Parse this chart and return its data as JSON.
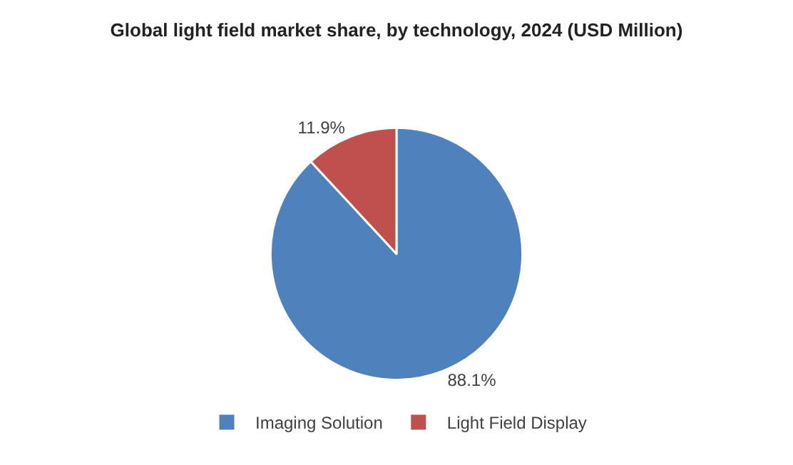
{
  "chart_data": {
    "type": "pie",
    "title": "Global light field market share, by technology, 2024 (USD Million)",
    "categories": [
      "Imaging Solution",
      "Light Field Display"
    ],
    "values": [
      88.1,
      11.9
    ],
    "colors": [
      "#4f81bd",
      "#c0504d"
    ],
    "value_labels": [
      "88.1%",
      "11.9%"
    ],
    "legend": "bottom"
  }
}
